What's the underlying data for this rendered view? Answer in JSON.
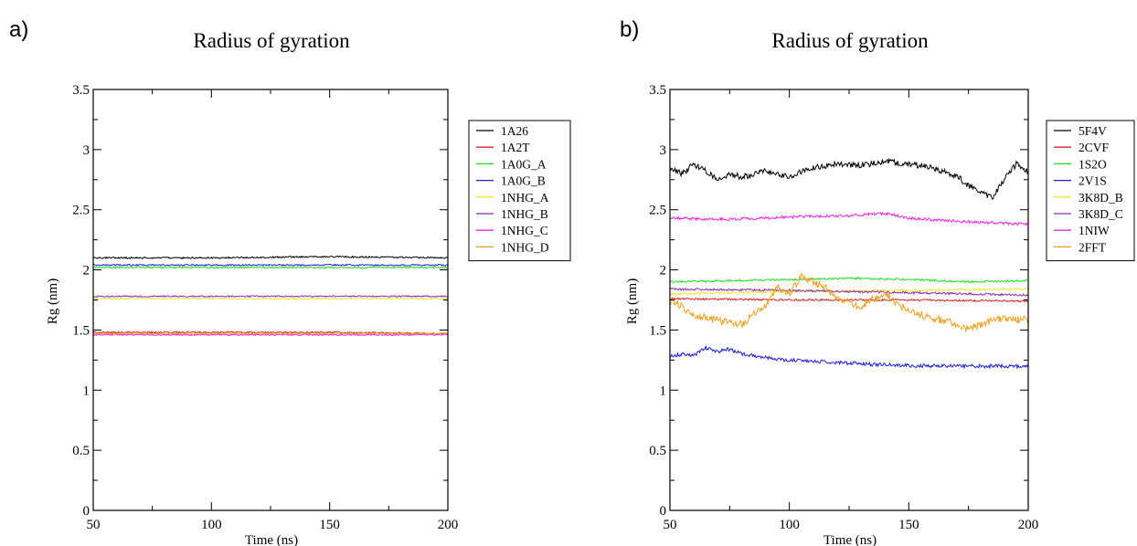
{
  "chart_data": [
    {
      "type": "line",
      "panel_label": "a)",
      "title": "Radius of gyration",
      "xlabel": "Time (ns)",
      "ylabel": "Rg (nm)",
      "xlim": [
        50,
        200
      ],
      "ylim": [
        0,
        3.5
      ],
      "x_ticks": [
        50,
        100,
        150,
        200
      ],
      "y_ticks": [
        0,
        0.5,
        1,
        1.5,
        2,
        2.5,
        3,
        3.5
      ],
      "grid": false,
      "legend_position": "right",
      "series": [
        {
          "name": "1A26",
          "color": "#000000",
          "x": [
            50,
            100,
            150,
            200
          ],
          "y": [
            2.1,
            2.1,
            2.11,
            2.1
          ]
        },
        {
          "name": "1A2T",
          "color": "#d62020",
          "x": [
            50,
            100,
            150,
            200
          ],
          "y": [
            1.48,
            1.48,
            1.48,
            1.47
          ]
        },
        {
          "name": "1A0G_A",
          "color": "#22dd22",
          "x": [
            50,
            100,
            150,
            200
          ],
          "y": [
            2.02,
            2.02,
            2.02,
            2.02
          ]
        },
        {
          "name": "1A0G_B",
          "color": "#1f1fd6",
          "x": [
            50,
            100,
            150,
            200
          ],
          "y": [
            2.04,
            2.04,
            2.04,
            2.04
          ]
        },
        {
          "name": "1NHG_A",
          "color": "#e8e830",
          "x": [
            50,
            100,
            150,
            200
          ],
          "y": [
            1.76,
            1.76,
            1.76,
            1.76
          ]
        },
        {
          "name": "1NHG_B",
          "color": "#8e2bb5",
          "x": [
            50,
            100,
            150,
            200
          ],
          "y": [
            1.78,
            1.78,
            1.78,
            1.78
          ]
        },
        {
          "name": "1NHG_C",
          "color": "#ee22ee",
          "x": [
            50,
            100,
            150,
            200
          ],
          "y": [
            1.46,
            1.46,
            1.46,
            1.46
          ]
        },
        {
          "name": "1NHG_D",
          "color": "#f0a020",
          "x": [
            50,
            100,
            150,
            200
          ],
          "y": [
            1.47,
            1.47,
            1.47,
            1.47
          ]
        }
      ]
    },
    {
      "type": "line",
      "panel_label": "b)",
      "title": "Radius of gyration",
      "xlabel": "Time (ns)",
      "ylabel": "Rg (nm)",
      "xlim": [
        50,
        200
      ],
      "ylim": [
        0,
        3.5
      ],
      "x_ticks": [
        50,
        100,
        150,
        200
      ],
      "y_ticks": [
        0,
        0.5,
        1,
        1.5,
        2,
        2.5,
        3,
        3.5
      ],
      "grid": false,
      "legend_position": "right",
      "series": [
        {
          "name": "5F4V",
          "color": "#000000",
          "x": [
            50,
            55,
            60,
            65,
            70,
            75,
            80,
            90,
            100,
            110,
            120,
            130,
            140,
            150,
            160,
            170,
            175,
            180,
            185,
            190,
            195,
            200
          ],
          "y": [
            2.85,
            2.8,
            2.88,
            2.82,
            2.75,
            2.8,
            2.77,
            2.82,
            2.78,
            2.85,
            2.88,
            2.87,
            2.9,
            2.88,
            2.85,
            2.78,
            2.7,
            2.65,
            2.6,
            2.75,
            2.88,
            2.82
          ]
        },
        {
          "name": "2CVF",
          "color": "#d62020",
          "x": [
            50,
            100,
            150,
            200
          ],
          "y": [
            1.76,
            1.75,
            1.75,
            1.74
          ]
        },
        {
          "name": "1S2O",
          "color": "#22dd22",
          "x": [
            50,
            75,
            100,
            125,
            150,
            175,
            200
          ],
          "y": [
            1.9,
            1.91,
            1.92,
            1.93,
            1.92,
            1.9,
            1.91
          ]
        },
        {
          "name": "2V1S",
          "color": "#1f1fd6",
          "x": [
            50,
            55,
            60,
            65,
            70,
            75,
            80,
            90,
            100,
            120,
            140,
            160,
            180,
            200
          ],
          "y": [
            1.28,
            1.3,
            1.29,
            1.35,
            1.32,
            1.34,
            1.3,
            1.27,
            1.25,
            1.23,
            1.21,
            1.2,
            1.2,
            1.2
          ]
        },
        {
          "name": "3K8D_B",
          "color": "#e8e830",
          "x": [
            50,
            100,
            150,
            200
          ],
          "y": [
            1.8,
            1.82,
            1.83,
            1.84
          ]
        },
        {
          "name": "3K8D_C",
          "color": "#8e2bb5",
          "x": [
            50,
            100,
            150,
            200
          ],
          "y": [
            1.84,
            1.83,
            1.81,
            1.79
          ]
        },
        {
          "name": "1NIW",
          "color": "#ee22ee",
          "x": [
            50,
            75,
            100,
            125,
            140,
            150,
            175,
            200
          ],
          "y": [
            2.43,
            2.42,
            2.44,
            2.45,
            2.47,
            2.43,
            2.4,
            2.38
          ]
        },
        {
          "name": "2FFT",
          "color": "#f0a020",
          "x": [
            50,
            55,
            60,
            70,
            80,
            90,
            95,
            100,
            105,
            110,
            115,
            120,
            130,
            140,
            150,
            160,
            170,
            175,
            180,
            190,
            200
          ],
          "y": [
            1.75,
            1.7,
            1.62,
            1.58,
            1.55,
            1.7,
            1.85,
            1.8,
            1.95,
            1.9,
            1.85,
            1.75,
            1.7,
            1.8,
            1.65,
            1.6,
            1.55,
            1.5,
            1.55,
            1.6,
            1.58
          ]
        }
      ]
    }
  ]
}
